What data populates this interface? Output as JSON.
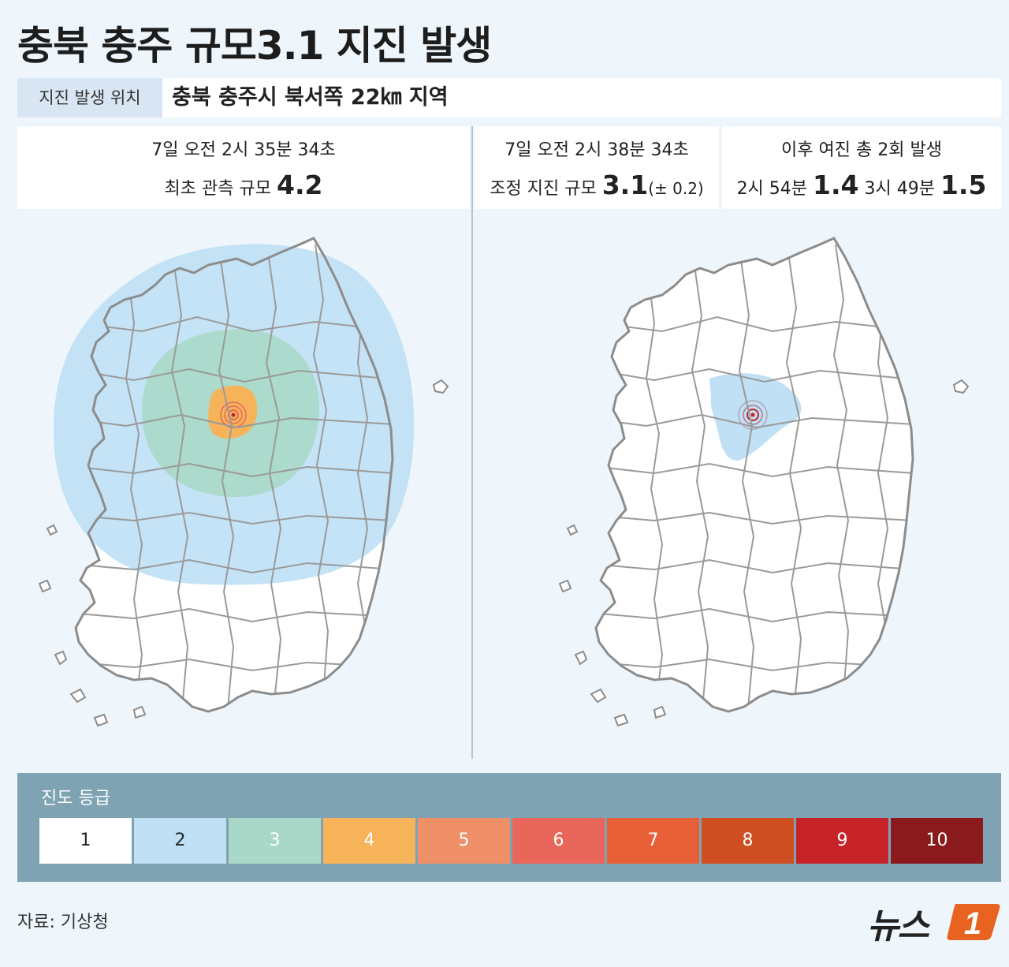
{
  "title": "충북 충주 규모3.1 지진 발생",
  "location": {
    "label": "지진 발생 위치",
    "value": "충북 충주시 북서쪽 22㎞ 지역"
  },
  "first_report": {
    "time": "7일 오전 2시 35분 34초",
    "label": "최초 관측 규모",
    "magnitude": "4.2"
  },
  "adjusted": {
    "time": "7일 오전 2시 38분 34초",
    "label": "조정 지진 규모",
    "magnitude": "3.1",
    "margin": "(± 0.2)"
  },
  "aftershocks": {
    "headline": "이후 여진 총 2회 발생",
    "first_time": "2시 54분",
    "first_magnitude": "1.4",
    "second_time": "3시 49분",
    "second_magnitude": "1.5"
  },
  "intensity_scale": {
    "title": "진도 등급",
    "levels": [
      {
        "label": "1",
        "color": "#ffffff",
        "text_color": "#222222"
      },
      {
        "label": "2",
        "color": "#bfe0f5",
        "text_color": "#222222"
      },
      {
        "label": "3",
        "color": "#a9d8c8",
        "text_color": "#ffffff"
      },
      {
        "label": "4",
        "color": "#f6b35a",
        "text_color": "#ffffff"
      },
      {
        "label": "5",
        "color": "#ef9068",
        "text_color": "#ffffff"
      },
      {
        "label": "6",
        "color": "#e8675a",
        "text_color": "#ffffff"
      },
      {
        "label": "7",
        "color": "#e65f37",
        "text_color": "#ffffff"
      },
      {
        "label": "8",
        "color": "#cf4f22",
        "text_color": "#ffffff"
      },
      {
        "label": "9",
        "color": "#c62329",
        "text_color": "#ffffff"
      },
      {
        "label": "10",
        "color": "#8b1a1d",
        "text_color": "#ffffff"
      }
    ]
  },
  "maps": {
    "left": {
      "zones": [
        "2",
        "3",
        "4"
      ]
    },
    "right": {
      "zones": [
        "2"
      ]
    }
  },
  "source": "자료: 기상청",
  "brand": {
    "name": "뉴스",
    "mark": "1",
    "color": "#e8631f"
  }
}
